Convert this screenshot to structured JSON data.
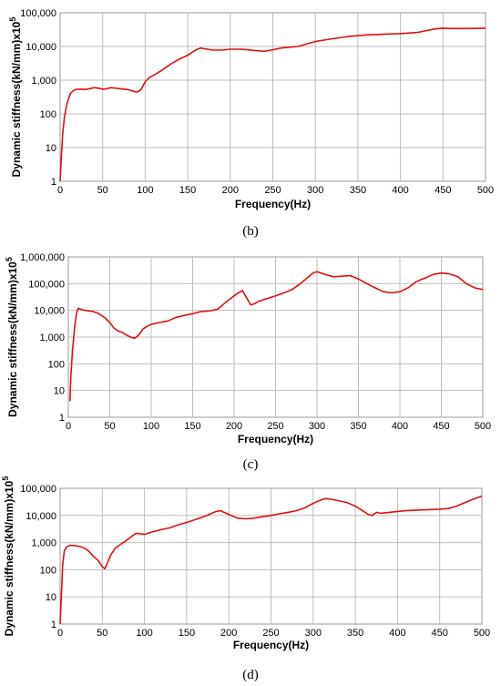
{
  "colors": {
    "line": "#e01010",
    "grid": "#bdbdbd",
    "frame": "#9a9a9a"
  },
  "chart_data": [
    {
      "type": "line",
      "caption": "(b)",
      "xlabel": "Frequency(Hz)",
      "ylabel": "Dynamic stiffness(kN/mm)x10",
      "ylabel_sup": "5",
      "yscale": "log",
      "xlim": [
        0,
        500
      ],
      "ylim": [
        1,
        100000
      ],
      "grid": true,
      "x_ticks": [
        "0",
        "50",
        "100",
        "150",
        "200",
        "250",
        "300",
        "350",
        "400",
        "450",
        "500"
      ],
      "y_ticks": [
        "1",
        "10",
        "100",
        "1,000",
        "10,000",
        "100,000"
      ],
      "series": [
        {
          "x": [
            0,
            1,
            2,
            3,
            5,
            8,
            12,
            16,
            20,
            25,
            30,
            35,
            40,
            45,
            50,
            55,
            60,
            65,
            70,
            75,
            80,
            85,
            90,
            95,
            100,
            105,
            110,
            120,
            130,
            140,
            150,
            160,
            165,
            170,
            180,
            190,
            200,
            210,
            220,
            230,
            240,
            250,
            260,
            270,
            280,
            290,
            300,
            320,
            340,
            360,
            380,
            400,
            420,
            440,
            450,
            460,
            480,
            500
          ],
          "y": [
            1,
            3,
            10,
            25,
            80,
            200,
            400,
            500,
            540,
            540,
            530,
            560,
            600,
            580,
            540,
            560,
            600,
            580,
            560,
            540,
            520,
            480,
            440,
            520,
            900,
            1200,
            1400,
            2000,
            3000,
            4200,
            5500,
            8000,
            9000,
            8500,
            7800,
            7800,
            8300,
            8300,
            8000,
            7500,
            7200,
            8000,
            9000,
            9500,
            10000,
            12000,
            14000,
            17000,
            20000,
            22000,
            23000,
            24000,
            26000,
            33000,
            35000,
            34000,
            34000,
            35000
          ]
        }
      ]
    },
    {
      "type": "line",
      "caption": "(c)",
      "xlabel": "Frequency(Hz)",
      "ylabel": "Dynamic stiffness(kN/mm)x10",
      "ylabel_sup": "5",
      "yscale": "log",
      "xlim": [
        0,
        500
      ],
      "ylim": [
        1,
        1000000
      ],
      "grid": true,
      "x_ticks": [
        "0",
        "50",
        "100",
        "150",
        "200",
        "250",
        "300",
        "350",
        "400",
        "450",
        "500"
      ],
      "y_ticks": [
        "1",
        "10",
        "100",
        "1,000",
        "10,000",
        "100,000",
        "1,000,000"
      ],
      "series": [
        {
          "x": [
            2,
            3,
            5,
            8,
            10,
            12,
            15,
            20,
            25,
            30,
            35,
            40,
            45,
            50,
            55,
            60,
            65,
            70,
            75,
            80,
            85,
            90,
            95,
            100,
            110,
            120,
            130,
            140,
            150,
            160,
            170,
            180,
            190,
            200,
            205,
            210,
            215,
            220,
            225,
            230,
            240,
            250,
            260,
            270,
            280,
            290,
            295,
            300,
            310,
            320,
            330,
            340,
            350,
            360,
            370,
            380,
            390,
            400,
            410,
            420,
            430,
            440,
            450,
            460,
            470,
            480,
            490,
            500
          ],
          "y": [
            4,
            30,
            300,
            3000,
            8000,
            12000,
            11000,
            10000,
            9500,
            9000,
            8000,
            6500,
            5000,
            3500,
            2200,
            1700,
            1500,
            1200,
            1000,
            900,
            1200,
            2000,
            2500,
            3000,
            3500,
            4000,
            5500,
            6500,
            7500,
            9000,
            9500,
            11000,
            20000,
            35000,
            45000,
            55000,
            30000,
            16000,
            18000,
            22000,
            28000,
            35000,
            45000,
            60000,
            100000,
            180000,
            250000,
            280000,
            220000,
            180000,
            190000,
            200000,
            150000,
            100000,
            70000,
            50000,
            45000,
            50000,
            70000,
            120000,
            160000,
            220000,
            250000,
            230000,
            180000,
            100000,
            70000,
            60000
          ]
        }
      ]
    },
    {
      "type": "line",
      "caption": "(d)",
      "xlabel": "Frequency(Hz)",
      "ylabel": "Dynamic stiffness(kN/mm)x10",
      "ylabel_sup": "5",
      "yscale": "log",
      "xlim": [
        0,
        500
      ],
      "ylim": [
        1,
        100000
      ],
      "grid": true,
      "x_ticks": [
        "0",
        "50",
        "100",
        "150",
        "200",
        "250",
        "300",
        "350",
        "400",
        "450",
        "500"
      ],
      "y_ticks": [
        "1",
        "10",
        "100",
        "1,000",
        "10,000",
        "100,000"
      ],
      "series": [
        {
          "x": [
            0,
            1,
            2,
            3,
            5,
            8,
            12,
            20,
            25,
            30,
            35,
            40,
            45,
            50,
            53,
            55,
            60,
            65,
            70,
            75,
            80,
            85,
            90,
            95,
            100,
            110,
            120,
            130,
            140,
            150,
            160,
            170,
            180,
            185,
            190,
            200,
            210,
            220,
            230,
            240,
            250,
            260,
            270,
            280,
            290,
            300,
            310,
            315,
            320,
            330,
            340,
            350,
            360,
            365,
            370,
            375,
            380,
            390,
            400,
            410,
            420,
            430,
            440,
            450,
            460,
            470,
            480,
            490,
            500
          ],
          "y": [
            1,
            5,
            30,
            150,
            500,
            700,
            800,
            750,
            700,
            600,
            450,
            300,
            220,
            130,
            110,
            150,
            350,
            600,
            800,
            1000,
            1300,
            1700,
            2200,
            2100,
            2000,
            2500,
            3000,
            3500,
            4500,
            5500,
            7000,
            9000,
            12000,
            14000,
            15000,
            11000,
            8000,
            7500,
            8000,
            9000,
            10000,
            11500,
            13000,
            15000,
            19000,
            28000,
            38000,
            42000,
            40000,
            35000,
            30000,
            22000,
            14000,
            11000,
            10000,
            13000,
            12000,
            13000,
            14000,
            15000,
            15500,
            16000,
            16500,
            17000,
            18000,
            22000,
            30000,
            40000,
            52000
          ]
        }
      ]
    }
  ]
}
